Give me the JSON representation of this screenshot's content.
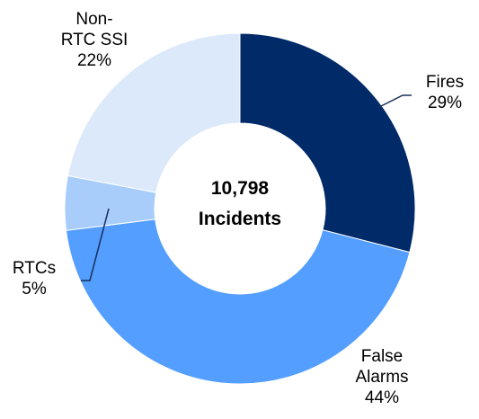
{
  "chart_data": {
    "type": "donut",
    "categories": [
      "Fires",
      "False\nAlarms",
      "RTCs",
      "Non-\nRTC SSI"
    ],
    "values": [
      29,
      44,
      5,
      22
    ],
    "value_labels": [
      "29%",
      "44%",
      "5%",
      "22%"
    ],
    "colors": [
      "#002a68",
      "#539eff",
      "#a8cdfb",
      "#dbe9fb"
    ],
    "center_text": [
      "10,798",
      "Incidents"
    ]
  }
}
